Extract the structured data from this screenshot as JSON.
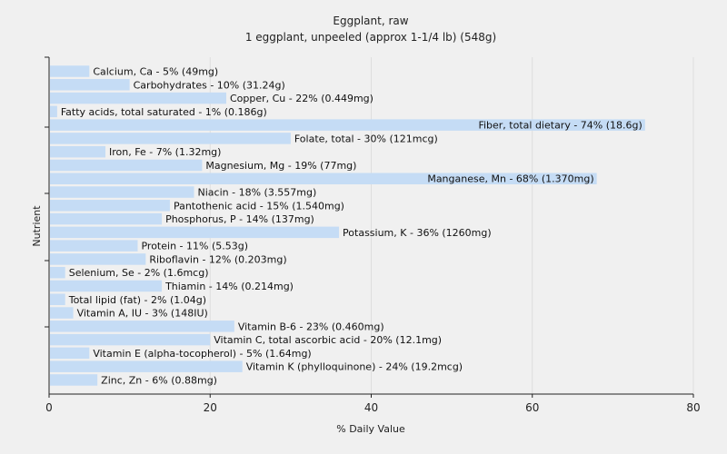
{
  "chart_data": {
    "type": "bar",
    "orientation": "horizontal",
    "title": "Eggplant, raw",
    "subtitle": "1 eggplant, unpeeled (approx 1-1/4 lb) (548g)",
    "xlabel": "% Daily Value",
    "ylabel": "Nutrient",
    "xlim": [
      0,
      80
    ],
    "xticks": [
      0,
      20,
      40,
      60,
      80
    ],
    "grid": true,
    "bar_color": "#c5dcf5",
    "categories": [
      "Calcium, Ca - 5% (49mg)",
      "Carbohydrates - 10% (31.24g)",
      "Copper, Cu - 22% (0.449mg)",
      "Fatty acids, total saturated - 1% (0.186g)",
      "Fiber, total dietary - 74% (18.6g)",
      "Folate, total - 30% (121mcg)",
      "Iron, Fe - 7% (1.32mg)",
      "Magnesium, Mg - 19% (77mg)",
      "Manganese, Mn - 68% (1.370mg)",
      "Niacin - 18% (3.557mg)",
      "Pantothenic acid - 15% (1.540mg)",
      "Phosphorus, P - 14% (137mg)",
      "Potassium, K - 36% (1260mg)",
      "Protein - 11% (5.53g)",
      "Riboflavin - 12% (0.203mg)",
      "Selenium, Se - 2% (1.6mcg)",
      "Thiamin - 14% (0.214mg)",
      "Total lipid (fat) - 2% (1.04g)",
      "Vitamin A, IU - 3% (148IU)",
      "Vitamin B-6 - 23% (0.460mg)",
      "Vitamin C, total ascorbic acid - 20% (12.1mg)",
      "Vitamin E (alpha-tocopherol) - 5% (1.64mg)",
      "Vitamin K (phylloquinone) - 24% (19.2mcg)",
      "Zinc, Zn - 6% (0.88mg)"
    ],
    "values": [
      5,
      10,
      22,
      1,
      74,
      30,
      7,
      19,
      68,
      18,
      15,
      14,
      36,
      11,
      12,
      2,
      14,
      2,
      3,
      23,
      20,
      5,
      24,
      6
    ]
  }
}
